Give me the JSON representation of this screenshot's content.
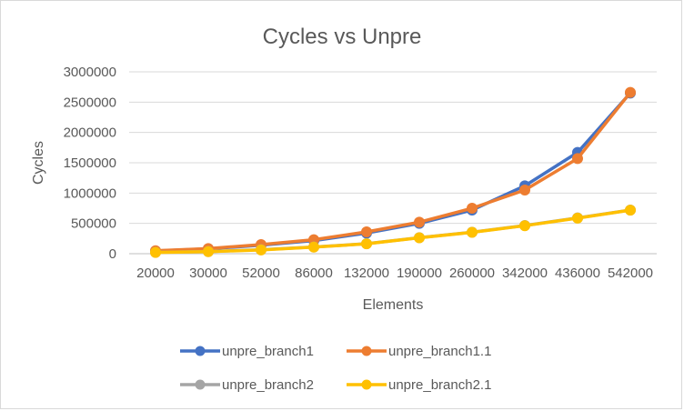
{
  "chart_data": {
    "type": "line",
    "title": "Cycles vs Unpre",
    "xlabel": "Elements",
    "ylabel": "Cycles",
    "categories": [
      "20000",
      "30000",
      "52000",
      "86000",
      "132000",
      "190000",
      "260000",
      "342000",
      "436000",
      "542000"
    ],
    "ylim": [
      0,
      3000000
    ],
    "yticks": [
      0,
      500000,
      1000000,
      1500000,
      2000000,
      2500000,
      3000000
    ],
    "ytick_labels": [
      "0",
      "500000",
      "1000000",
      "1500000",
      "2000000",
      "2500000",
      "3000000"
    ],
    "grid": true,
    "legend_position": "bottom",
    "series": [
      {
        "name": "unpre_branch1",
        "color": "#4472C4",
        "values": [
          45000,
          80000,
          140000,
          215000,
          340000,
          500000,
          720000,
          1120000,
          1670000,
          2650000
        ]
      },
      {
        "name": "unpre_branch1.1",
        "color": "#ED7D31",
        "values": [
          48000,
          85000,
          150000,
          230000,
          360000,
          520000,
          750000,
          1050000,
          1570000,
          2660000
        ]
      },
      {
        "name": "unpre_branch2",
        "color": "#A5A5A5",
        "values": [
          22000,
          35000,
          65000,
          110000,
          165000,
          265000,
          355000,
          465000,
          590000,
          720000
        ]
      },
      {
        "name": "unpre_branch2.1",
        "color": "#FFC000",
        "values": [
          20000,
          33000,
          62000,
          108000,
          163000,
          262000,
          352000,
          462000,
          587000,
          718000
        ]
      }
    ]
  }
}
